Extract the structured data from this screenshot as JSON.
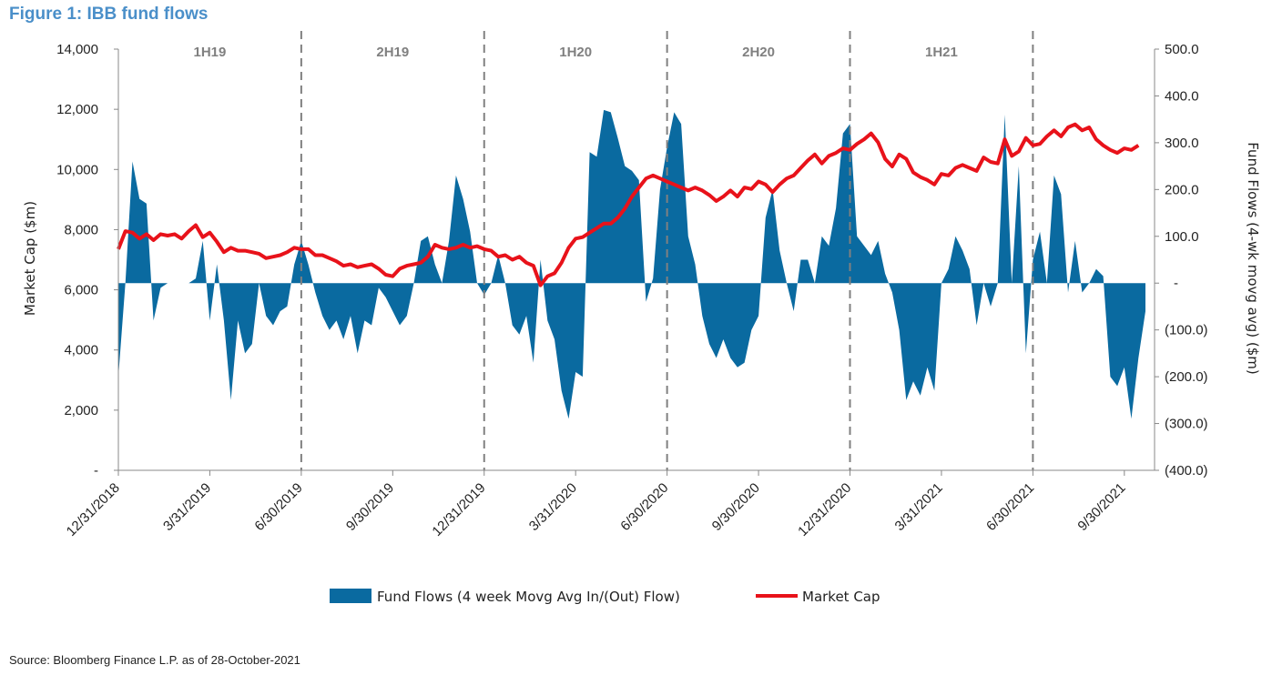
{
  "figure": {
    "title": "Figure 1: IBB fund flows",
    "source": "Source: Bloomberg Finance L.P. as of 28-October-2021"
  },
  "chart_data": {
    "type": "area+line",
    "ylabel": "Market Cap ($m)",
    "y2label": "Fund Flows (4-wk movg avg) ($m)",
    "ylim": [
      0,
      14000
    ],
    "y2lim": [
      -400,
      500
    ],
    "left_ticks": [
      "-",
      "2,000",
      "4,000",
      "6,000",
      "8,000",
      "10,000",
      "12,000",
      "14,000"
    ],
    "right_ticks": [
      "(400.0)",
      "(300.0)",
      "(200.0)",
      "(100.0)",
      "-",
      "100.0",
      "200.0",
      "300.0",
      "400.0",
      "500.0"
    ],
    "x_tick_labels": [
      "12/31/2018",
      "3/31/2019",
      "6/30/2019",
      "9/30/2019",
      "12/31/2019",
      "3/31/2020",
      "6/30/2020",
      "9/30/2020",
      "12/31/2020",
      "3/31/2021",
      "6/30/2021",
      "9/30/2021"
    ],
    "periods": [
      "1H19",
      "2H19",
      "1H20",
      "2H20",
      "1H21"
    ],
    "legend": {
      "flows": "Fund Flows (4 week Movg Avg In/(Out) Flow)",
      "mcap": "Market Cap"
    },
    "colors": {
      "flows": "#0a6aa0",
      "mcap": "#e8121a",
      "divider": "#808080"
    },
    "series": [
      {
        "name": "Fund Flows (4 week Movg Avg In/(Out) Flow)",
        "axis": "right",
        "values": [
          -200,
          0,
          260,
          180,
          170,
          -80,
          -10,
          0,
          0,
          0,
          0,
          10,
          90,
          -80,
          40,
          -80,
          -250,
          -80,
          -150,
          -130,
          0,
          -70,
          -90,
          -60,
          -50,
          40,
          90,
          40,
          -20,
          -70,
          -100,
          -80,
          -120,
          -70,
          -150,
          -80,
          -90,
          -10,
          -30,
          -60,
          -90,
          -70,
          0,
          90,
          100,
          40,
          0,
          90,
          230,
          180,
          110,
          0,
          -25,
          0,
          60,
          0,
          -90,
          -110,
          -70,
          -170,
          50,
          -80,
          -120,
          -230,
          -290,
          -190,
          -200,
          280,
          270,
          370,
          365,
          310,
          250,
          240,
          220,
          -40,
          10,
          200,
          290,
          365,
          340,
          100,
          40,
          -70,
          -130,
          -160,
          -120,
          -160,
          -180,
          -170,
          -100,
          -70,
          140,
          200,
          70,
          0,
          -60,
          50,
          50,
          0,
          100,
          80,
          160,
          320,
          340,
          100,
          80,
          60,
          90,
          20,
          -20,
          -100,
          -250,
          -210,
          -240,
          -180,
          -230,
          0,
          30,
          100,
          70,
          30,
          -90,
          0,
          -50,
          0,
          360,
          0,
          250,
          -150,
          50,
          110,
          0,
          230,
          190,
          -20,
          90,
          -20,
          0,
          30,
          15,
          -200,
          -220,
          -180,
          -290,
          -160,
          -60
        ],
        "x_start": "12/31/2018",
        "x_step_days": 7
      },
      {
        "name": "Market Cap",
        "axis": "left",
        "values": [
          7350,
          7950,
          7900,
          7700,
          7850,
          7650,
          7850,
          7800,
          7850,
          7700,
          7950,
          8150,
          7750,
          7900,
          7600,
          7250,
          7400,
          7300,
          7300,
          7250,
          7200,
          7050,
          7100,
          7150,
          7250,
          7400,
          7350,
          7350,
          7150,
          7150,
          7050,
          6950,
          6800,
          6850,
          6750,
          6800,
          6850,
          6700,
          6500,
          6450,
          6700,
          6800,
          6850,
          6900,
          7100,
          7500,
          7400,
          7350,
          7400,
          7500,
          7400,
          7450,
          7350,
          7300,
          7100,
          7150,
          7000,
          7100,
          6900,
          6800,
          6150,
          6450,
          6550,
          6900,
          7400,
          7700,
          7750,
          7900,
          8050,
          8200,
          8200,
          8400,
          8700,
          9100,
          9400,
          9700,
          9800,
          9700,
          9600,
          9500,
          9400,
          9300,
          9400,
          9300,
          9150,
          8950,
          9100,
          9300,
          9100,
          9400,
          9350,
          9600,
          9500,
          9250,
          9500,
          9700,
          9800,
          10050,
          10300,
          10500,
          10200,
          10450,
          10550,
          10700,
          10650,
          10850,
          11000,
          11200,
          10900,
          10350,
          10100,
          10500,
          10350,
          9900,
          9750,
          9650,
          9500,
          9850,
          9800,
          10050,
          10150,
          10050,
          9950,
          10400,
          10250,
          10200,
          11000,
          10450,
          10600,
          11050,
          10800,
          10850,
          11100,
          11300,
          11100,
          11400,
          11500,
          11300,
          11400,
          11000,
          10800,
          10650,
          10550,
          10700,
          10650,
          10800
        ]
      }
    ]
  }
}
